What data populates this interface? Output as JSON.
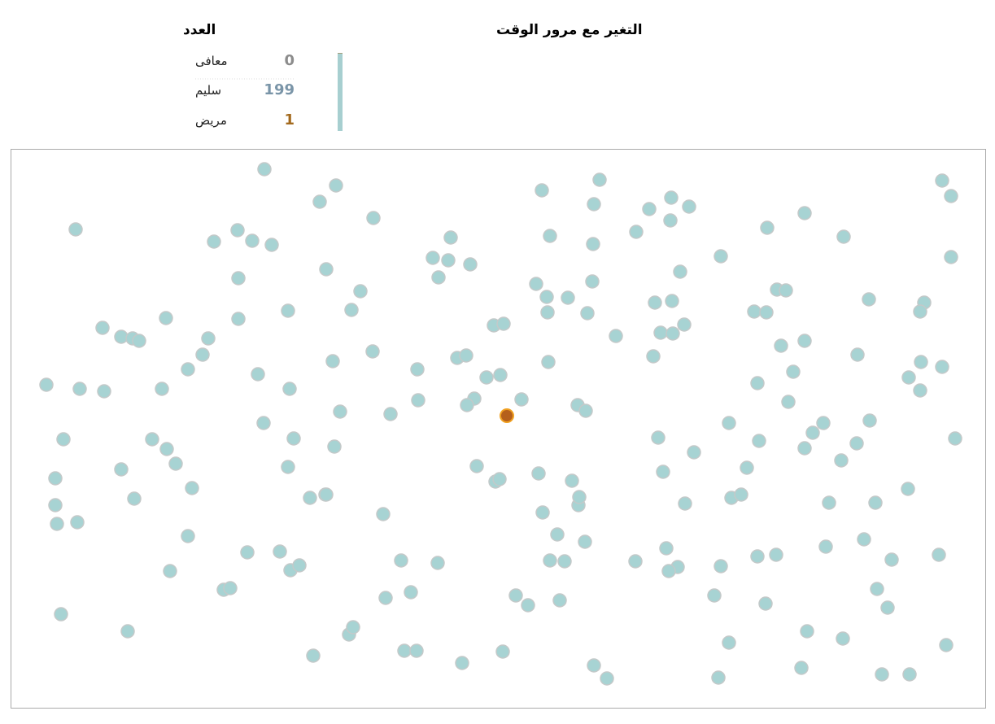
{
  "legend": {
    "title": "العدد",
    "rows": [
      {
        "label": "معافى",
        "value": 0,
        "color": "#8c8c8c"
      },
      {
        "label": "سليم",
        "value": 199,
        "color": "#7a95a8"
      },
      {
        "label": "مريض",
        "value": 1,
        "color": "#a36a1e"
      }
    ]
  },
  "timeline": {
    "title": "التغير مع مرور الوقت"
  },
  "simulation": {
    "healthy_color": "#a7d3d3",
    "sick_color": "#b5601c"
  }
}
